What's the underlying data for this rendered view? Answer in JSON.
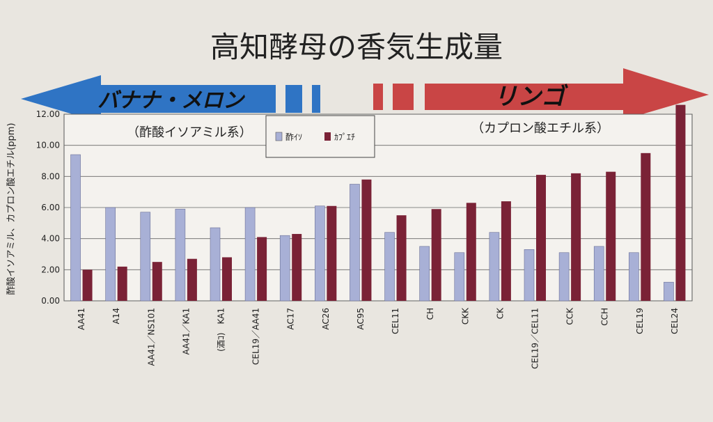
{
  "slide": {
    "title": "高知酵母の香気生成量",
    "banana_label": "バナナ・メロン",
    "apple_label": "リンゴ",
    "left_group_label": "（酢酸イソアミル系）",
    "right_group_label": "（カプロン酸エチル系）"
  },
  "colors": {
    "background": "#e9e6e0",
    "banana_arrow": "#2f74c4",
    "apple_arrow": "#c94545",
    "isoamyl_bar": "#a8b0d6",
    "caproate_bar": "#7a2236"
  },
  "chart_data": {
    "type": "bar",
    "ylabel": "酢酸イソアミル、カプロン酸エチル(ppm)",
    "ylim": [
      0,
      12
    ],
    "yticks": [
      "0.00",
      "2.00",
      "4.00",
      "6.00",
      "8.00",
      "10.00",
      "12.00"
    ],
    "grid": true,
    "legend_position": "top-center",
    "categories": [
      "AA41",
      "A14",
      "AA41／NS101",
      "AA41／KA1",
      "(酒ｺ)　KA1",
      "CEL19／AA41",
      "AC17",
      "AC26",
      "AC95",
      "CEL11",
      "CH",
      "CKK",
      "CK",
      "CEL19／CEL11",
      "CCK",
      "CCH",
      "CEL19",
      "CEL24"
    ],
    "series": [
      {
        "name": "酢ｲｿ",
        "values": [
          9.4,
          6.0,
          5.7,
          5.9,
          4.7,
          6.0,
          4.2,
          6.1,
          7.5,
          4.4,
          3.5,
          3.1,
          4.4,
          3.3,
          3.1,
          3.5,
          3.1,
          1.2
        ]
      },
      {
        "name": "ｶﾌﾟｴﾁ",
        "values": [
          2.0,
          2.2,
          2.5,
          2.7,
          2.8,
          4.1,
          4.3,
          6.1,
          7.8,
          5.5,
          5.9,
          6.3,
          6.4,
          8.1,
          8.2,
          8.3,
          9.5,
          12.6
        ]
      }
    ]
  }
}
